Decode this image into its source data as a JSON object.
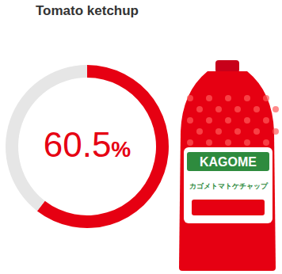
{
  "chart_data": {
    "type": "pie",
    "title": "Tomato ketchup",
    "values": [
      60.5,
      39.5
    ],
    "colors": [
      "#e60012",
      "#e6e6e6"
    ],
    "data_labels": true,
    "value_labels": [
      "60.5%",
      null
    ],
    "annotations": [
      "KAGOME",
      "カゴメトマトケチャップ"
    ]
  }
}
